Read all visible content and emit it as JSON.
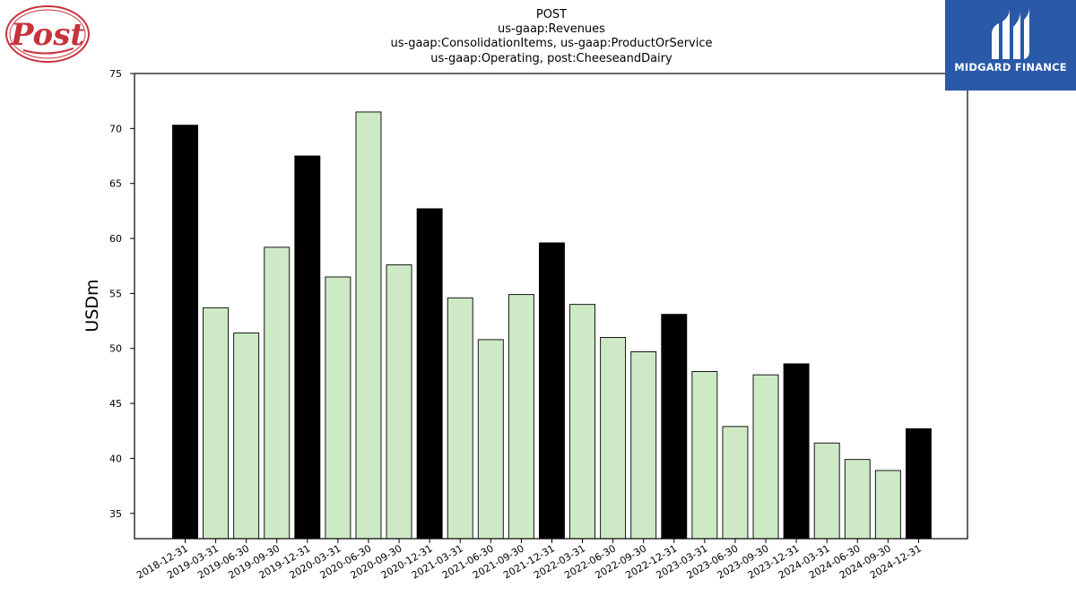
{
  "logos": {
    "left_brand": "Post",
    "right_brand": "MIDGARD FINANCE"
  },
  "chart_data": {
    "type": "bar",
    "title": "POST",
    "subtitle_lines": [
      "us-gaap:Revenues",
      "us-gaap:ConsolidationItems, us-gaap:ProductOrService",
      "us-gaap:Operating, post:CheeseandDairy"
    ],
    "xlabel": "",
    "ylabel": "USDm",
    "ylim": [
      32.7,
      75
    ],
    "yticks": [
      35,
      40,
      45,
      50,
      55,
      60,
      65,
      70,
      75
    ],
    "grid": false,
    "legend": "none",
    "colors": {
      "annual": "#000000",
      "quarterly": "#cde9c5",
      "edge": "#000000"
    },
    "categories": [
      "2018-12-31",
      "2019-03-31",
      "2019-06-30",
      "2019-09-30",
      "2019-12-31",
      "2020-03-31",
      "2020-06-30",
      "2020-09-30",
      "2020-12-31",
      "2021-03-31",
      "2021-06-30",
      "2021-09-30",
      "2021-12-31",
      "2022-03-31",
      "2022-06-30",
      "2022-09-30",
      "2022-12-31",
      "2023-03-31",
      "2023-06-30",
      "2023-09-30",
      "2023-12-31",
      "2024-03-31",
      "2024-06-30",
      "2024-09-30",
      "2024-12-31"
    ],
    "values": [
      70.3,
      53.7,
      51.4,
      59.2,
      67.5,
      56.5,
      71.5,
      57.6,
      62.7,
      54.6,
      50.8,
      54.9,
      59.6,
      54.0,
      51.0,
      49.7,
      53.1,
      47.9,
      42.9,
      47.6,
      48.6,
      41.4,
      39.9,
      38.9,
      42.7
    ],
    "annual": [
      true,
      false,
      false,
      false,
      true,
      false,
      false,
      false,
      true,
      false,
      false,
      false,
      true,
      false,
      false,
      false,
      true,
      false,
      false,
      false,
      true,
      false,
      false,
      false,
      true
    ]
  }
}
